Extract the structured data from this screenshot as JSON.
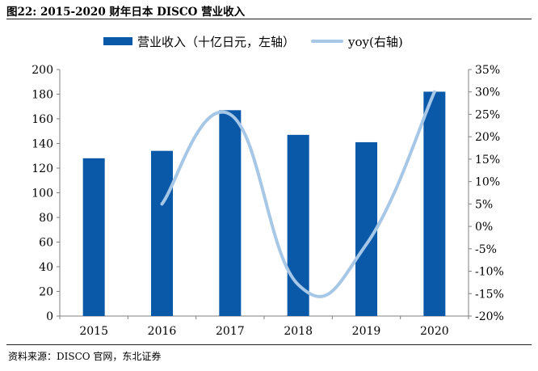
{
  "figure_title": "图22:  2015-2020 财年日本 DISCO 营业收入",
  "source": "资料来源：DISCO 官网，东北证券",
  "legend": {
    "bar_label": "营业收入（十亿日元，左轴）",
    "line_label": "yoy(右轴)"
  },
  "colors": {
    "bar": "#0a58a8",
    "line": "#a7c7e7",
    "axis": "#7f7f7f"
  },
  "chart_data": {
    "type": "bar",
    "categories": [
      "2015",
      "2016",
      "2017",
      "2018",
      "2019",
      "2020"
    ],
    "series": [
      {
        "name": "营业收入（十亿日元，左轴）",
        "type": "bar",
        "axis": "left",
        "values": [
          128,
          134,
          167,
          147,
          141,
          182
        ]
      },
      {
        "name": "yoy(右轴)",
        "type": "line",
        "axis": "right",
        "values": [
          null,
          5,
          25,
          -13,
          -4,
          30
        ]
      }
    ],
    "y_left": {
      "min": 0,
      "max": 200,
      "step": 20,
      "ticks": [
        "0",
        "20",
        "40",
        "60",
        "80",
        "100",
        "120",
        "140",
        "160",
        "180",
        "200"
      ]
    },
    "y_right": {
      "min": -20,
      "max": 35,
      "step": 5,
      "ticks": [
        "-20%",
        "-15%",
        "-10%",
        "-5%",
        "0%",
        "5%",
        "10%",
        "15%",
        "20%",
        "25%",
        "30%",
        "35%"
      ]
    },
    "grid": false,
    "legend_position": "top"
  }
}
